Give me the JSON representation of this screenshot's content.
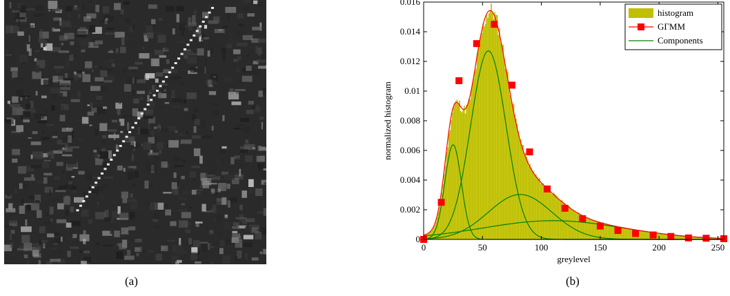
{
  "captions": {
    "a": "(a)",
    "b": "(b)"
  },
  "colors": {
    "histogram": "#c0c000",
    "gtmm": "#ff0000",
    "components": "#008000",
    "photo_dark": "#2a2a2a"
  },
  "image_a": {
    "icon": "sar-greyscale-image"
  },
  "chart_data": {
    "type": "bar",
    "xlabel": "greylevel",
    "ylabel": "normalized histogram",
    "xlim": [
      0,
      255
    ],
    "ylim": [
      0,
      0.016
    ],
    "x_ticks": [
      0,
      50,
      100,
      150,
      200,
      250
    ],
    "y_ticks": [
      0,
      0.002,
      0.004,
      0.006,
      0.008,
      0.01,
      0.012,
      0.014,
      0.016
    ],
    "y_tick_labels": [
      "0",
      "0.002",
      "0.004",
      "0.006",
      "0.008",
      "0.01",
      "0.012",
      "0.014",
      "0.016"
    ],
    "legend": {
      "placement": "top-right",
      "entries": [
        "histogram",
        "GΓMM",
        "Components"
      ]
    },
    "components": [
      {
        "mean": 25,
        "sd": 7,
        "weight": 0.112
      },
      {
        "mean": 55,
        "sd": 15,
        "weight": 0.478
      },
      {
        "mean": 82,
        "sd": 27,
        "weight": 0.205
      },
      {
        "mean": 110,
        "sd": 60,
        "weight": 0.19
      }
    ],
    "series": [
      {
        "name": "GΓMM",
        "x": [
          0,
          15,
          30,
          45,
          60,
          75,
          90,
          105,
          120,
          135,
          150,
          165,
          180,
          195,
          210,
          225,
          240,
          255
        ],
        "y": [
          0.0,
          0.0025,
          0.0107,
          0.0132,
          0.0145,
          0.0104,
          0.0059,
          0.0034,
          0.0021,
          0.0014,
          0.0009,
          0.0006,
          0.0004,
          0.0003,
          0.0002,
          0.0001,
          8e-05,
          5e-05
        ]
      }
    ]
  }
}
